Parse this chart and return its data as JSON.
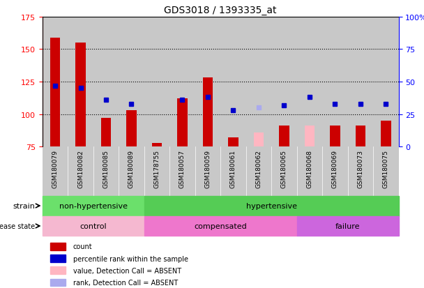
{
  "title": "GDS3018 / 1393335_at",
  "samples": [
    "GSM180079",
    "GSM180082",
    "GSM180085",
    "GSM180089",
    "GSM178755",
    "GSM180057",
    "GSM180059",
    "GSM180061",
    "GSM180062",
    "GSM180065",
    "GSM180068",
    "GSM180069",
    "GSM180073",
    "GSM180075"
  ],
  "count_values": [
    159,
    155,
    97,
    103,
    78,
    112,
    128,
    82,
    null,
    91,
    null,
    91,
    91,
    95
  ],
  "count_absent": [
    null,
    null,
    null,
    null,
    null,
    null,
    null,
    null,
    86,
    null,
    91,
    null,
    null,
    null
  ],
  "percentile_values": [
    122,
    120,
    111,
    108,
    null,
    111,
    113,
    103,
    null,
    107,
    113,
    108,
    108,
    108
  ],
  "percentile_absent": [
    null,
    null,
    null,
    null,
    null,
    null,
    null,
    null,
    105,
    null,
    null,
    null,
    null,
    null
  ],
  "ylim_left": [
    75,
    175
  ],
  "ylim_right": [
    0,
    100
  ],
  "yticks_left": [
    75,
    100,
    125,
    150,
    175
  ],
  "yticks_right": [
    0,
    25,
    50,
    75,
    100
  ],
  "strain_groups": [
    {
      "label": "non-hypertensive",
      "start": 0,
      "end": 4,
      "color": "#6BE06B"
    },
    {
      "label": "hypertensive",
      "start": 4,
      "end": 14,
      "color": "#55CC55"
    }
  ],
  "disease_groups": [
    {
      "label": "control",
      "start": 0,
      "end": 4,
      "color": "#F5B8D0"
    },
    {
      "label": "compensated",
      "start": 4,
      "end": 10,
      "color": "#EE77CC"
    },
    {
      "label": "failure",
      "start": 10,
      "end": 14,
      "color": "#CC66DD"
    }
  ],
  "count_color": "#CC0000",
  "count_absent_color": "#FFB6C1",
  "percentile_color": "#0000CC",
  "percentile_absent_color": "#AAAAEE",
  "bar_bottom": 75,
  "col_bg_color": "#C8C8C8",
  "plot_bg": "#FFFFFF",
  "bar_width": 0.4,
  "legend_items": [
    {
      "color": "#CC0000",
      "label": "count"
    },
    {
      "color": "#0000CC",
      "label": "percentile rank within the sample"
    },
    {
      "color": "#FFB6C1",
      "label": "value, Detection Call = ABSENT"
    },
    {
      "color": "#AAAAEE",
      "label": "rank, Detection Call = ABSENT"
    }
  ]
}
